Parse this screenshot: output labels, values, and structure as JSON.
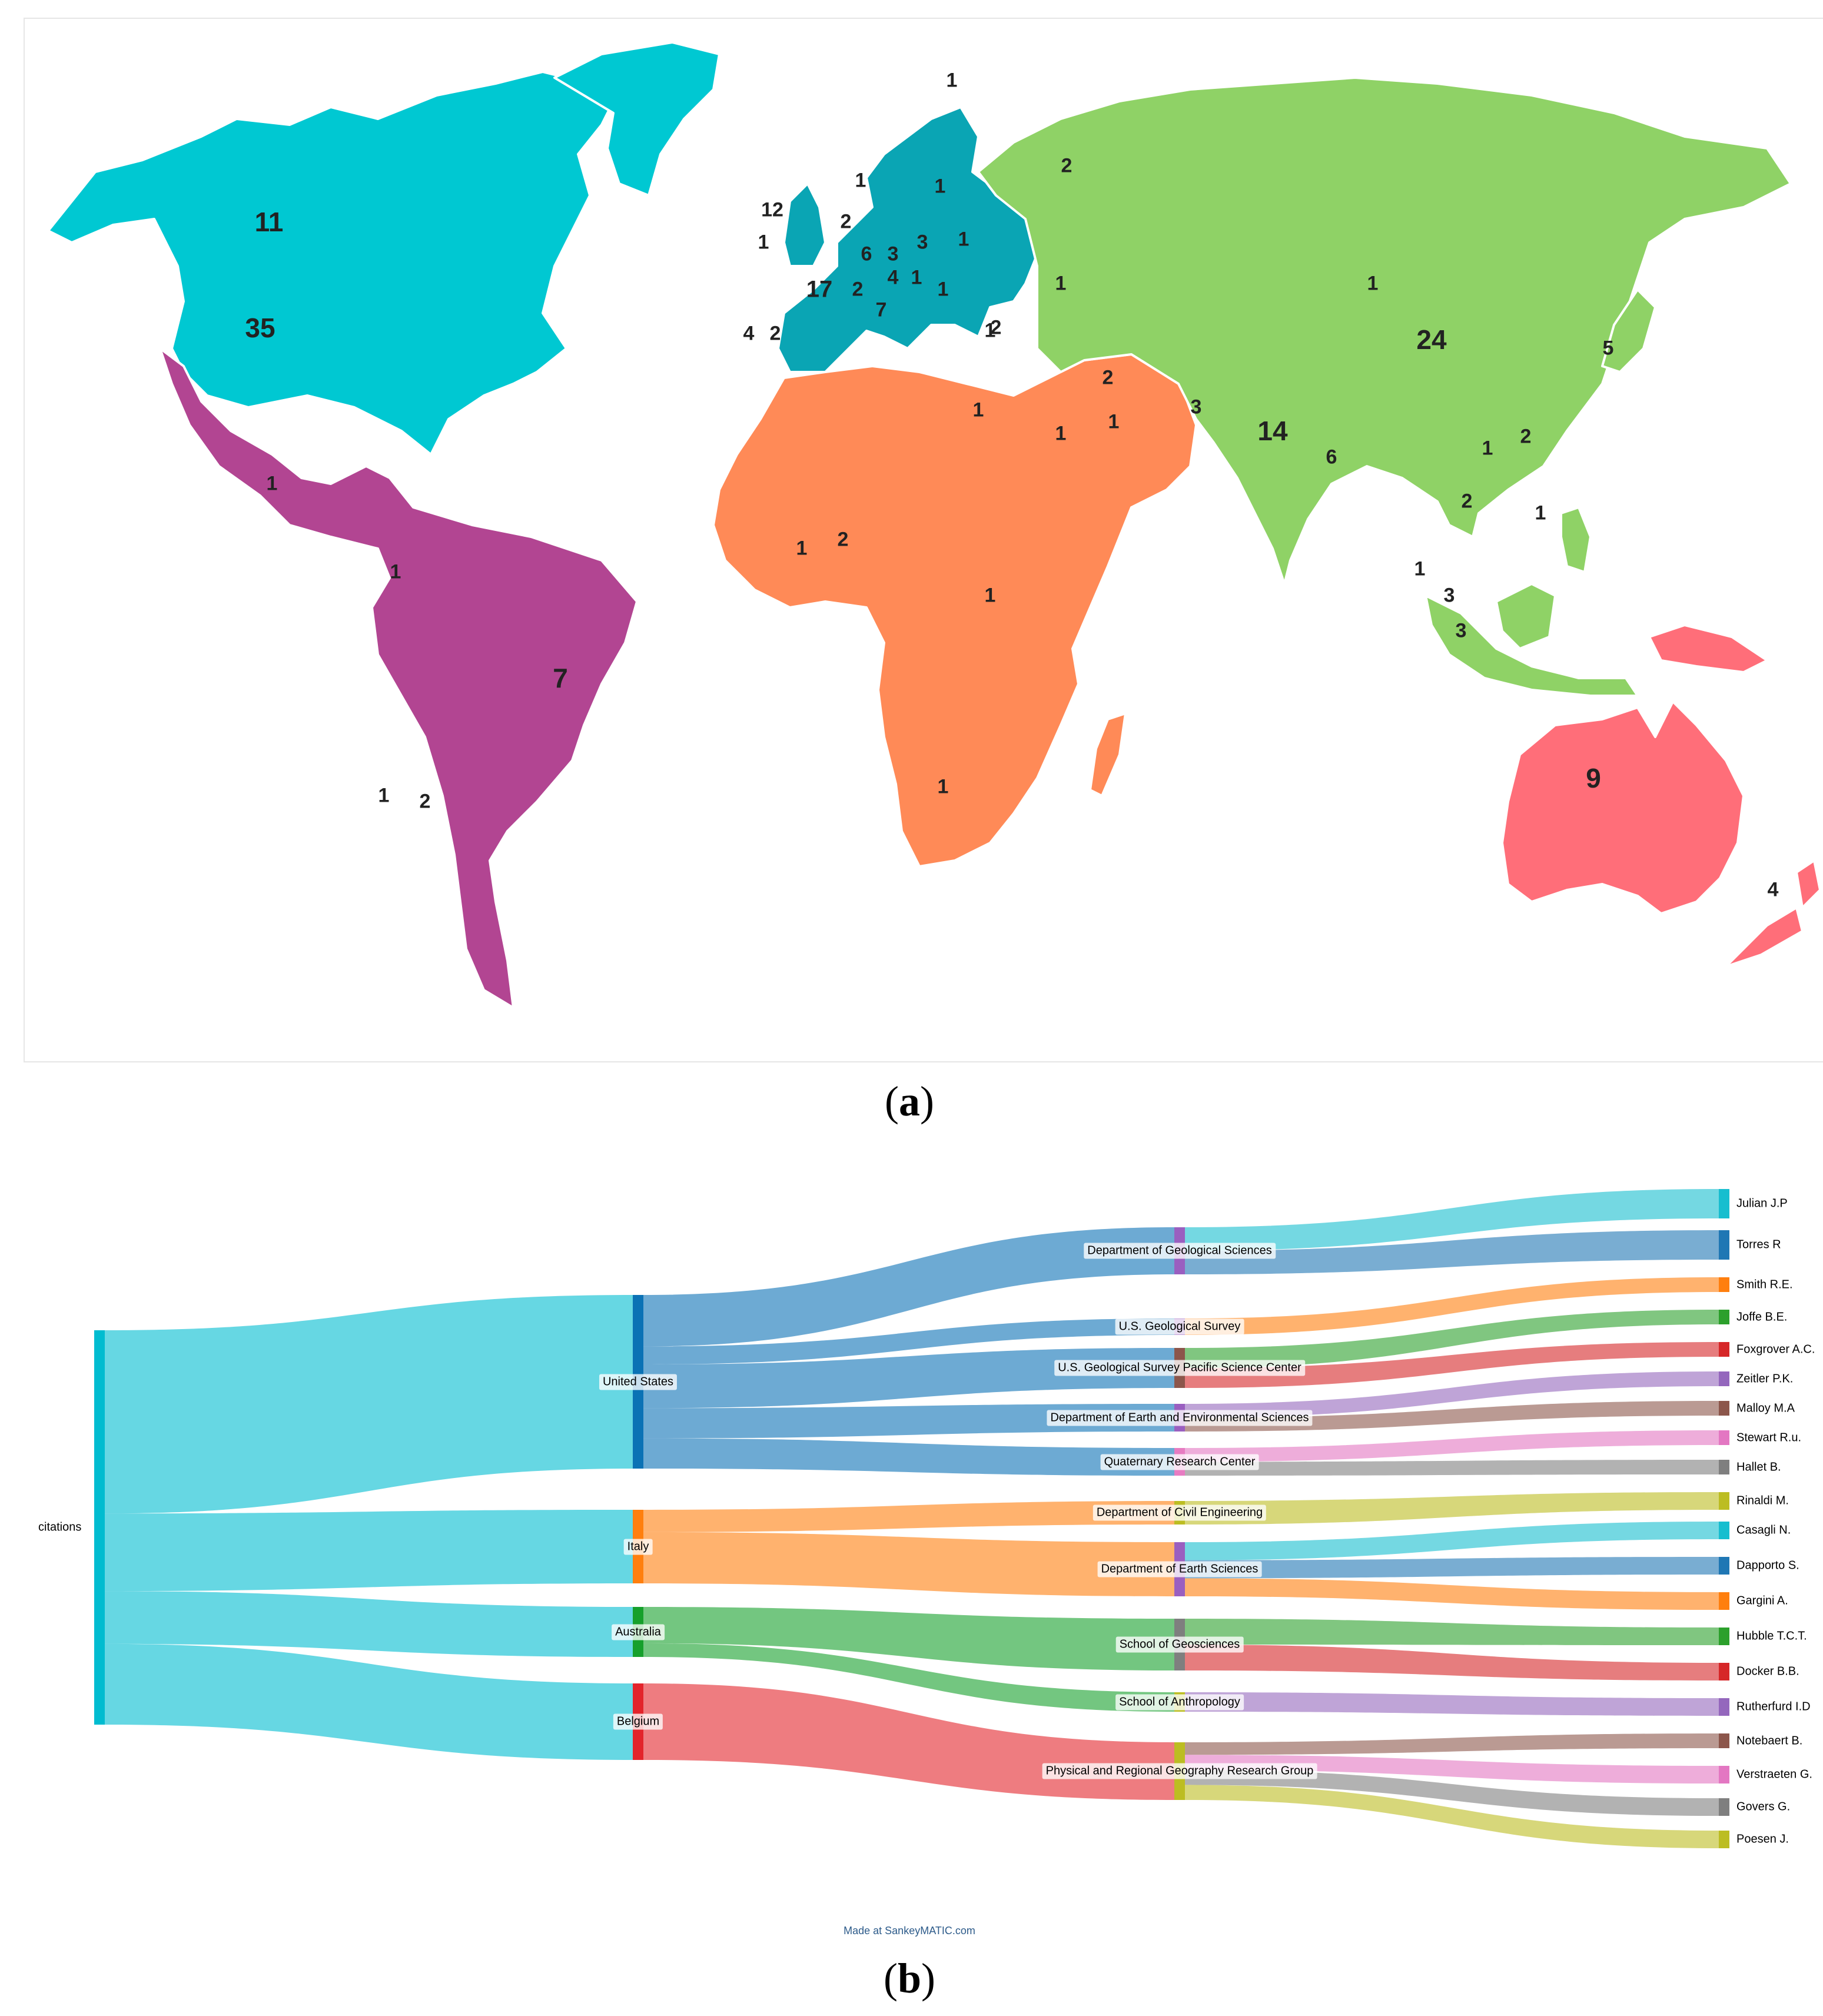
{
  "colors": {
    "north_america": "#00c8d2",
    "europe": "#0aa5b4",
    "latin_america": "#b24592",
    "africa_middle_east": "#ff8a57",
    "asia": "#8fd266",
    "oceania": "#ff6e79"
  },
  "map": {
    "caption_open": "(",
    "caption_letter": "a",
    "caption_close": ")",
    "regions": [
      {
        "id": "north_america",
        "color": "#00c8d2"
      },
      {
        "id": "europe",
        "color": "#0aa5b4"
      },
      {
        "id": "latin_america",
        "color": "#b24592"
      },
      {
        "id": "africa_middle_east",
        "color": "#ff8a57"
      },
      {
        "id": "asia",
        "color": "#8fd266"
      },
      {
        "id": "oceania",
        "color": "#ff6e79"
      }
    ],
    "counts": [
      {
        "label": "11",
        "size": "large"
      },
      {
        "label": "35",
        "size": "large"
      },
      {
        "label": "12",
        "size": "small"
      },
      {
        "label": "1",
        "size": "small"
      },
      {
        "label": "1",
        "size": "small"
      },
      {
        "label": "1",
        "size": "small"
      },
      {
        "label": "2",
        "size": "small"
      },
      {
        "label": "1",
        "size": "small"
      },
      {
        "label": "6",
        "size": "small"
      },
      {
        "label": "3",
        "size": "small"
      },
      {
        "label": "3",
        "size": "small"
      },
      {
        "label": "1",
        "size": "small"
      },
      {
        "label": "17",
        "size": "medium"
      },
      {
        "label": "2",
        "size": "small"
      },
      {
        "label": "4",
        "size": "small"
      },
      {
        "label": "1",
        "size": "small"
      },
      {
        "label": "7",
        "size": "small"
      },
      {
        "label": "4",
        "size": "small"
      },
      {
        "label": "2",
        "size": "small"
      },
      {
        "label": "2",
        "size": "small"
      },
      {
        "label": "1",
        "size": "small"
      },
      {
        "label": "1",
        "size": "small"
      },
      {
        "label": "24",
        "size": "large"
      },
      {
        "label": "5",
        "size": "small"
      },
      {
        "label": "1",
        "size": "small"
      },
      {
        "label": "2",
        "size": "small"
      },
      {
        "label": "3",
        "size": "small"
      },
      {
        "label": "14",
        "size": "large"
      },
      {
        "label": "6",
        "size": "small"
      },
      {
        "label": "1",
        "size": "small"
      },
      {
        "label": "2",
        "size": "small"
      },
      {
        "label": "2",
        "size": "small"
      },
      {
        "label": "1",
        "size": "small"
      },
      {
        "label": "1",
        "size": "small"
      },
      {
        "label": "3",
        "size": "small"
      },
      {
        "label": "3",
        "size": "small"
      },
      {
        "label": "1",
        "size": "small"
      },
      {
        "label": "2",
        "size": "small"
      },
      {
        "label": "1",
        "size": "small"
      },
      {
        "label": "1",
        "size": "small"
      },
      {
        "label": "1",
        "size": "small"
      },
      {
        "label": "2",
        "size": "small"
      },
      {
        "label": "1",
        "size": "small"
      },
      {
        "label": "1",
        "size": "small"
      },
      {
        "label": "1",
        "size": "small"
      },
      {
        "label": "1",
        "size": "small"
      },
      {
        "label": "1",
        "size": "small"
      },
      {
        "label": "1",
        "size": "small"
      },
      {
        "label": "7",
        "size": "large"
      },
      {
        "label": "2",
        "size": "small"
      },
      {
        "label": "9",
        "size": "large"
      },
      {
        "label": "4",
        "size": "small"
      }
    ]
  },
  "sankey": {
    "caption_open": "(",
    "caption_letter": "b",
    "caption_close": ")",
    "credit": "Made at SankeyMATIC.com",
    "source": {
      "label": "citations",
      "color": "#00bcd0"
    },
    "countries": [
      {
        "label": "United States",
        "color": "#0b72b5"
      },
      {
        "label": "Italy",
        "color": "#ff7f0e"
      },
      {
        "label": "Australia",
        "color": "#16a02c"
      },
      {
        "label": "Belgium",
        "color": "#e3242b"
      }
    ],
    "departments": [
      {
        "label": "Department of Geological Sciences",
        "color": "#9a5fc0"
      },
      {
        "label": "U.S. Geological Survey",
        "color": "#9a5fc0"
      },
      {
        "label": "U.S. Geological Survey Pacific Science Center",
        "color": "#8c564b"
      },
      {
        "label": "Department of Earth and Environmental Sciences",
        "color": "#9a5fc0"
      },
      {
        "label": "Quaternary Research Center",
        "color": "#e77cc2"
      },
      {
        "label": "Department of Civil Engineering",
        "color": "#bcbd22"
      },
      {
        "label": "Department of Earth Sciences",
        "color": "#9a5fc0"
      },
      {
        "label": "School of Geosciences",
        "color": "#7f7f7f"
      },
      {
        "label": "School of Anthropology",
        "color": "#bcbd22"
      },
      {
        "label": "Physical and Regional Geography Research Group",
        "color": "#bcbd22"
      }
    ],
    "authors": [
      {
        "label": "Julian J.P",
        "color": "#17becf"
      },
      {
        "label": "Torres R",
        "color": "#1f77b4"
      },
      {
        "label": "Smith R.E.",
        "color": "#ff7f0e"
      },
      {
        "label": "Joffe B.E.",
        "color": "#2ca02c"
      },
      {
        "label": "Foxgrover A.C.",
        "color": "#d62728"
      },
      {
        "label": "Zeitler P.K.",
        "color": "#9467bd"
      },
      {
        "label": "Malloy M.A",
        "color": "#8c564b"
      },
      {
        "label": "Stewart R.u.",
        "color": "#e377c2"
      },
      {
        "label": "Hallet B.",
        "color": "#7f7f7f"
      },
      {
        "label": "Rinaldi M.",
        "color": "#bcbd22"
      },
      {
        "label": "Casagli N.",
        "color": "#17becf"
      },
      {
        "label": "Dapporto S.",
        "color": "#1f77b4"
      },
      {
        "label": "Gargini A.",
        "color": "#ff7f0e"
      },
      {
        "label": "Hubble T.C.T.",
        "color": "#2ca02c"
      },
      {
        "label": "Docker B.B.",
        "color": "#d62728"
      },
      {
        "label": "Rutherfurd I.D",
        "color": "#9467bd"
      },
      {
        "label": "Notebaert B.",
        "color": "#8c564b"
      },
      {
        "label": "Verstraeten G.",
        "color": "#e377c2"
      },
      {
        "label": "Govers G.",
        "color": "#7f7f7f"
      },
      {
        "label": "Poesen J.",
        "color": "#bcbd22"
      }
    ]
  }
}
